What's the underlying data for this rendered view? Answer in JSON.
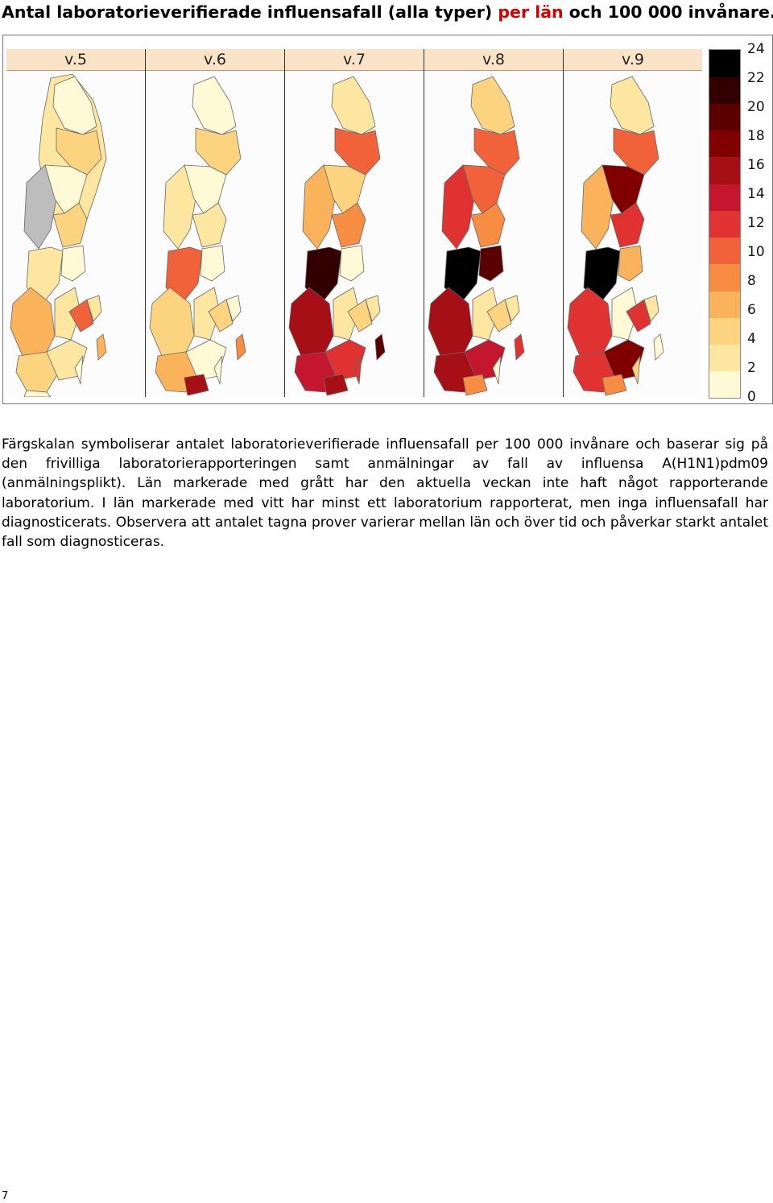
{
  "page": {
    "title_part1": "Antal laboratorieverifierade influensafall (alla typer) ",
    "title_part2": "per län",
    "title_part3": " och 100 000 invånare.",
    "caption": "Färgskalan symboliserar antalet laboratorieverifierade influensafall per 100 000 invånare och baserar sig på den frivilliga laboratorierapporteringen samt anmälningar av fall av influensa A(H1N1)pdm09 (anmälningsplikt). Län markerade med grått har den aktuella veckan inte haft något rapporterande laboratorium. I län markerade med vitt har minst ett laboratorium rapporterat, men inga influensafall har diagnosticerats. Observera att antalet tagna prover varierar mellan län och över tid och påverkar starkt antalet fall som diagnosticeras.",
    "page_number": "7"
  },
  "figure": {
    "weeks": [
      "v.5",
      "v.6",
      "v.7",
      "v.8",
      "v.9"
    ],
    "legend": {
      "ticks": [
        "24",
        "22",
        "20",
        "18",
        "16",
        "14",
        "12",
        "10",
        "8",
        "6",
        "4",
        "2",
        "0"
      ],
      "colors_low_to_high": [
        "#fff9d6",
        "#fde7a0",
        "#fcd37e",
        "#fbb35b",
        "#f78c43",
        "#f1613a",
        "#e13232",
        "#c4162c",
        "#a50f15",
        "#800000",
        "#5a0000",
        "#330000",
        "#000000"
      ]
    }
  },
  "colors": {
    "no_report": "#bdbdbd",
    "title_red": "#d40000"
  }
}
